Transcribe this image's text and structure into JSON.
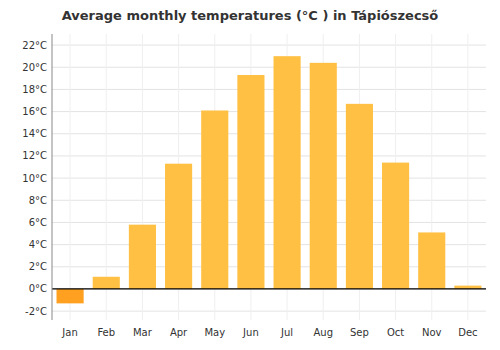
{
  "chart_data": {
    "type": "bar",
    "title": "Average monthly temperatures (°C ) in Tápiószecső",
    "categories": [
      "Jan",
      "Feb",
      "Mar",
      "Apr",
      "May",
      "Jun",
      "Jul",
      "Aug",
      "Sep",
      "Oct",
      "Nov",
      "Dec"
    ],
    "values": [
      -1.3,
      1.1,
      5.8,
      11.3,
      16.1,
      19.3,
      21.0,
      20.4,
      16.7,
      11.4,
      5.1,
      0.3
    ],
    "colors": [
      "#FFA020",
      "#FFC044",
      "#FFC044",
      "#FFC044",
      "#FFC044",
      "#FFC044",
      "#FFC044",
      "#FFC044",
      "#FFC044",
      "#FFC044",
      "#FFC044",
      "#FFC044"
    ],
    "ylim": [
      -2.8,
      23.0
    ],
    "yticks": [
      {
        "value": -2,
        "label": "-2°C"
      },
      {
        "value": 0,
        "label": "0°C"
      },
      {
        "value": 2,
        "label": "2°C"
      },
      {
        "value": 4,
        "label": "4°C"
      },
      {
        "value": 6,
        "label": "6°C"
      },
      {
        "value": 8,
        "label": "8°C"
      },
      {
        "value": 10,
        "label": "10°C"
      },
      {
        "value": 12,
        "label": "12°C"
      },
      {
        "value": 14,
        "label": "14°C"
      },
      {
        "value": 16,
        "label": "16°C"
      },
      {
        "value": 18,
        "label": "18°C"
      },
      {
        "value": 20,
        "label": "20°C"
      },
      {
        "value": 22,
        "label": "22°C"
      }
    ],
    "grid": true
  }
}
